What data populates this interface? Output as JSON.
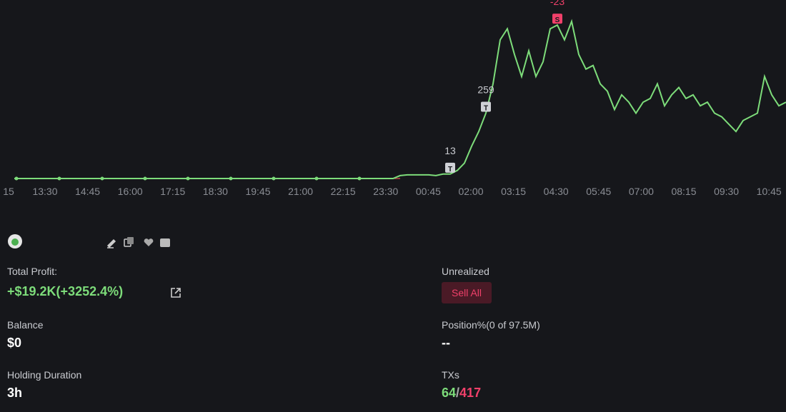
{
  "chart": {
    "type": "line",
    "x_labels": [
      "15",
      "13:30",
      "14:45",
      "16:00",
      "17:15",
      "18:30",
      "19:45",
      "21:00",
      "22:15",
      "23:30",
      "00:45",
      "02:00",
      "03:15",
      "04:30",
      "05:45",
      "07:00",
      "08:15",
      "09:30",
      "10:45"
    ],
    "color": "#7ddc7a",
    "values": [
      1,
      1,
      1,
      1,
      1,
      1,
      1,
      1,
      1,
      1,
      1,
      1,
      1,
      1,
      1,
      1,
      1,
      1,
      1,
      1,
      1,
      1,
      1,
      1,
      1,
      1,
      1,
      1,
      1,
      1,
      1,
      1,
      1,
      1,
      1,
      1,
      1,
      1,
      1,
      1,
      1,
      1,
      1,
      1,
      1,
      1,
      1,
      1,
      1,
      1,
      1,
      1,
      1,
      1,
      5,
      6,
      6,
      6,
      6,
      5,
      7,
      7,
      12,
      22,
      45,
      65,
      90,
      130,
      190,
      205,
      170,
      140,
      175,
      140,
      160,
      205,
      210,
      190,
      215,
      170,
      150,
      155,
      130,
      120,
      95,
      115,
      105,
      90,
      105,
      110,
      130,
      100,
      115,
      125,
      110,
      115,
      100,
      105,
      90,
      85,
      75,
      65,
      80,
      85,
      90,
      140,
      115,
      100,
      105
    ],
    "markers": [
      {
        "label": "13",
        "tag": "T",
        "index": 61
      },
      {
        "label": "259",
        "tag": "T",
        "index": 66
      },
      {
        "label": "-23",
        "tag": "S",
        "index": 76
      }
    ]
  },
  "info": {
    "total_profit": {
      "label": "Total Profit:",
      "value": "+$19.2K(+3252.4%)"
    },
    "unrealized": {
      "label": "Unrealized",
      "button": "Sell All"
    },
    "balance": {
      "label": "Balance",
      "value": "$0"
    },
    "position": {
      "label": "Position%(0 of 97.5M)",
      "value": "--"
    },
    "holding": {
      "label": "Holding Duration",
      "value": "3h"
    },
    "txs": {
      "label": "TXs",
      "buys": 64,
      "separator": "/",
      "sells": 417
    }
  }
}
